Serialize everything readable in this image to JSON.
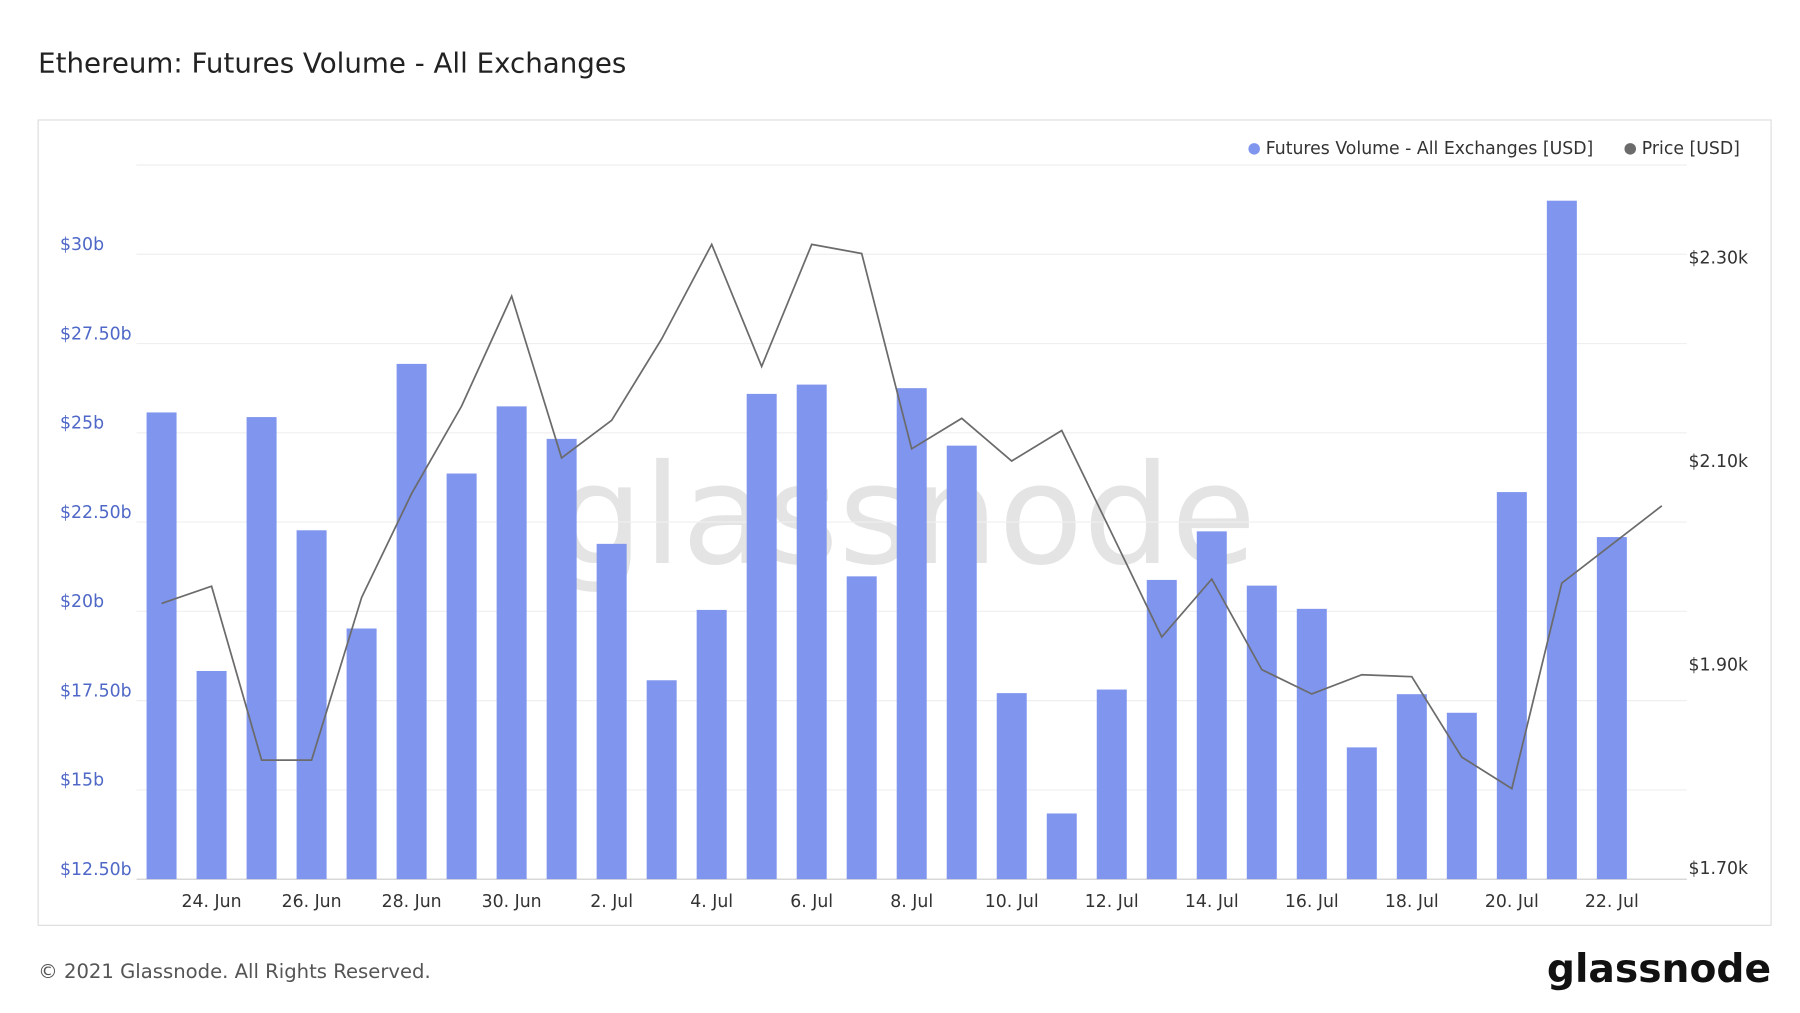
{
  "title": "Ethereum: Futures Volume - All Exchanges",
  "watermark": "glassnode",
  "footer": "© 2021 Glassnode. All Rights Reserved.",
  "logo": "glassnode",
  "chart_data": {
    "type": "bar",
    "categories": [
      null,
      "24. Jun",
      null,
      "26. Jun",
      null,
      "28. Jun",
      null,
      "30. Jun",
      null,
      "2. Jul",
      null,
      "4. Jul",
      null,
      "6. Jul",
      null,
      "8. Jul",
      null,
      "10. Jul",
      null,
      "12. Jul",
      null,
      "14. Jul",
      null,
      "16. Jul",
      null,
      "18. Jul",
      null,
      "20. Jul",
      null,
      "22. Jul",
      null
    ],
    "series": [
      {
        "name": "Futures Volume - All Exchanges [USD]",
        "type": "bar",
        "color": "#7f95ee",
        "values": [
          25.57,
          18.33,
          25.44,
          22.27,
          19.52,
          26.93,
          23.86,
          25.74,
          24.83,
          21.89,
          18.07,
          20.04,
          26.09,
          26.35,
          20.98,
          26.25,
          24.64,
          17.71,
          14.34,
          17.81,
          20.88,
          22.24,
          20.72,
          20.07,
          16.19,
          17.68,
          17.16,
          23.34,
          31.5,
          22.08,
          null
        ]
      },
      {
        "name": "Price [USD]",
        "type": "line",
        "axis": "y2",
        "color": "#6b6b6b",
        "values": [
          1.961,
          1.978,
          1.807,
          1.807,
          1.967,
          2.069,
          2.155,
          2.263,
          2.104,
          2.141,
          2.221,
          2.314,
          2.194,
          2.314,
          2.305,
          2.113,
          2.143,
          2.101,
          2.131,
          2.03,
          1.928,
          1.985,
          1.896,
          1.872,
          1.891,
          1.889,
          1.81,
          1.779,
          1.981,
          2.019,
          2.057
        ]
      }
    ],
    "ylim": [
      12.5,
      32.5
    ],
    "yticks": [
      {
        "value": 12.5,
        "label": "$12.50b"
      },
      {
        "value": 15,
        "label": "$15b"
      },
      {
        "value": 17.5,
        "label": "$17.50b"
      },
      {
        "value": 20,
        "label": "$20b"
      },
      {
        "value": 22.5,
        "label": "$22.50b"
      },
      {
        "value": 25,
        "label": "$25b"
      },
      {
        "value": 27.5,
        "label": "$27.50b"
      },
      {
        "value": 30,
        "label": "$30b"
      }
    ],
    "y2lim": [
      1.69,
      2.392
    ],
    "y2ticks": [
      {
        "value": 1.7,
        "label": "$1.70k"
      },
      {
        "value": 1.9,
        "label": "$1.90k"
      },
      {
        "value": 2.1,
        "label": "$2.10k"
      },
      {
        "value": 2.3,
        "label": "$2.30k"
      }
    ],
    "grid": true,
    "legend": "top-right"
  }
}
